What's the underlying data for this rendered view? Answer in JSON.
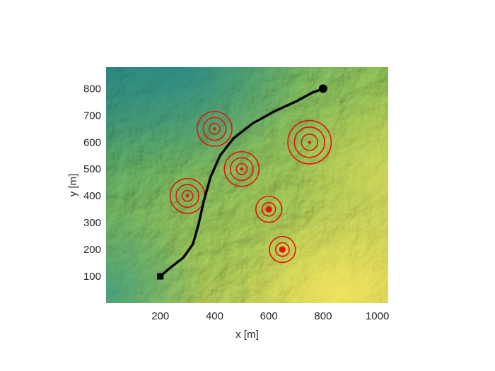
{
  "chart_data": {
    "type": "scatter",
    "title": "",
    "xlabel": "x [m]",
    "ylabel": "y [m]",
    "xlim": [
      0,
      1040
    ],
    "ylim": [
      0,
      880
    ],
    "xticks": [
      200,
      400,
      600,
      800,
      1000
    ],
    "yticks": [
      100,
      200,
      300,
      400,
      500,
      600,
      700,
      800
    ],
    "grid": false,
    "background": "terrain elevation map",
    "colors": {
      "path": "#000000",
      "threat": "#e8120c",
      "terrain_low": "#2f8f86",
      "terrain_mid": "#8cc45a",
      "terrain_high": "#e6e05e",
      "axis": "#262626"
    },
    "path": {
      "start": {
        "x": 200,
        "y": 100,
        "marker": "square"
      },
      "end": {
        "x": 800,
        "y": 800,
        "marker": "circle"
      },
      "points": [
        {
          "x": 200,
          "y": 100
        },
        {
          "x": 240,
          "y": 135
        },
        {
          "x": 285,
          "y": 170
        },
        {
          "x": 320,
          "y": 220
        },
        {
          "x": 340,
          "y": 290
        },
        {
          "x": 360,
          "y": 380
        },
        {
          "x": 385,
          "y": 470
        },
        {
          "x": 420,
          "y": 550
        },
        {
          "x": 470,
          "y": 615
        },
        {
          "x": 540,
          "y": 670
        },
        {
          "x": 620,
          "y": 715
        },
        {
          "x": 700,
          "y": 752
        },
        {
          "x": 760,
          "y": 785
        },
        {
          "x": 800,
          "y": 800
        }
      ]
    },
    "threats": [
      {
        "x": 400,
        "y": 650,
        "radii": [
          20,
          42,
          64
        ],
        "center": "small"
      },
      {
        "x": 500,
        "y": 500,
        "radii": [
          20,
          42,
          64
        ],
        "center": "small"
      },
      {
        "x": 300,
        "y": 400,
        "radii": [
          20,
          42,
          64
        ],
        "center": "small"
      },
      {
        "x": 750,
        "y": 600,
        "radii": [
          30,
          56,
          80
        ],
        "center": "small"
      },
      {
        "x": 600,
        "y": 350,
        "radii": [
          25,
          48
        ],
        "center": "large"
      },
      {
        "x": 650,
        "y": 200,
        "radii": [
          25,
          48
        ],
        "center": "large"
      }
    ]
  }
}
